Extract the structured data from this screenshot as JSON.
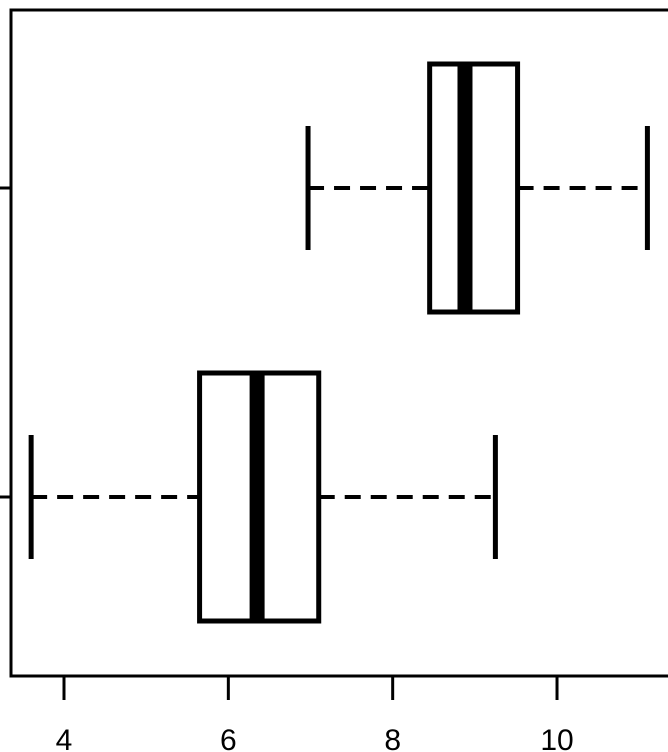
{
  "chart_data": {
    "type": "boxplot",
    "orientation": "horizontal",
    "title": "",
    "xlabel": "",
    "ylabel": "",
    "xlim": [
      3.4,
      11.3
    ],
    "x_ticks": [
      4,
      6,
      8,
      10
    ],
    "grid": false,
    "series": [
      {
        "whisker_low": 3.6,
        "q1": 5.65,
        "median": 6.35,
        "q3": 7.1,
        "whisker_high": 9.25
      },
      {
        "whisker_low": 6.97,
        "q1": 8.45,
        "median": 8.88,
        "q3": 9.52,
        "whisker_high": 11.1
      }
    ]
  }
}
